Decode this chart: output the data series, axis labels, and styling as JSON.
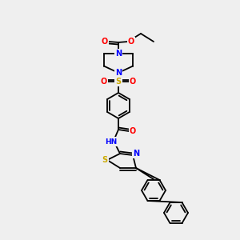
{
  "background_color": "#efefef",
  "bond_color": "#000000",
  "atom_colors": {
    "O": "#ff0000",
    "N": "#0000ff",
    "S": "#ccaa00",
    "H": "#000000",
    "C": "#000000"
  },
  "figsize": [
    3.0,
    3.0
  ],
  "dpi": 100
}
